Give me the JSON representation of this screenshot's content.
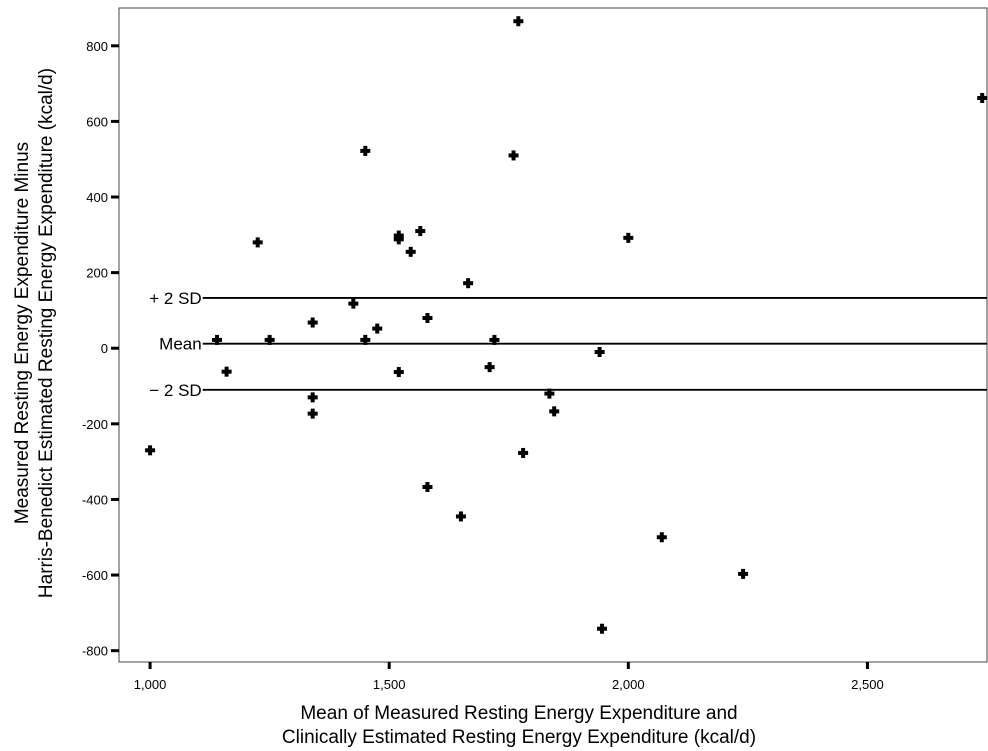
{
  "chart_data": {
    "type": "scatter",
    "title": "",
    "xlabel_lines": [
      "Mean of Measured Resting Energy Expenditure and",
      "Clinically Estimated Resting Energy Expenditure (kcal/d)"
    ],
    "ylabel_lines": [
      "Measured Resting Energy Expenditure Minus",
      "Harris-Benedict Estimated Resting Energy Expenditure (kcal/d)"
    ],
    "xlim": [
      935,
      2750
    ],
    "ylim": [
      -830,
      900
    ],
    "x_ticks": [
      1000,
      1500,
      2000,
      2500
    ],
    "x_tick_labels": [
      "1,000",
      "1,500",
      "2,000",
      "2,500"
    ],
    "y_ticks": [
      -800,
      -600,
      -400,
      -200,
      0,
      200,
      400,
      600,
      800
    ],
    "y_tick_labels": [
      "-800",
      "-600",
      "-400",
      "-200",
      "0",
      "200",
      "400",
      "600",
      "800"
    ],
    "grid": false,
    "reference_lines": [
      {
        "label": "+ 2 SD",
        "y": 133,
        "x_start": 1110,
        "x_end": 2750
      },
      {
        "label": "Mean",
        "y": 12,
        "x_start": 1110,
        "x_end": 2750
      },
      {
        "label": "− 2 SD",
        "y": -110,
        "x_start": 1110,
        "x_end": 2750
      }
    ],
    "points": [
      {
        "x": 1000,
        "y": -270
      },
      {
        "x": 1140,
        "y": 22
      },
      {
        "x": 1160,
        "y": -62
      },
      {
        "x": 1225,
        "y": 280
      },
      {
        "x": 1250,
        "y": 22
      },
      {
        "x": 1340,
        "y": 68
      },
      {
        "x": 1340,
        "y": -130
      },
      {
        "x": 1340,
        "y": -173
      },
      {
        "x": 1425,
        "y": 118
      },
      {
        "x": 1450,
        "y": 522
      },
      {
        "x": 1450,
        "y": 22
      },
      {
        "x": 1475,
        "y": 52
      },
      {
        "x": 1520,
        "y": 298
      },
      {
        "x": 1520,
        "y": 288
      },
      {
        "x": 1520,
        "y": -63
      },
      {
        "x": 1545,
        "y": 255
      },
      {
        "x": 1565,
        "y": 310
      },
      {
        "x": 1580,
        "y": 80
      },
      {
        "x": 1580,
        "y": -367
      },
      {
        "x": 1650,
        "y": -445
      },
      {
        "x": 1665,
        "y": 172
      },
      {
        "x": 1710,
        "y": -50
      },
      {
        "x": 1720,
        "y": 22
      },
      {
        "x": 1760,
        "y": 510
      },
      {
        "x": 1770,
        "y": 865
      },
      {
        "x": 1780,
        "y": -277
      },
      {
        "x": 1835,
        "y": -120
      },
      {
        "x": 1845,
        "y": -167
      },
      {
        "x": 1940,
        "y": -10
      },
      {
        "x": 1945,
        "y": -742
      },
      {
        "x": 2000,
        "y": 292
      },
      {
        "x": 2070,
        "y": -500
      },
      {
        "x": 2240,
        "y": -597
      },
      {
        "x": 2740,
        "y": 662
      }
    ]
  }
}
